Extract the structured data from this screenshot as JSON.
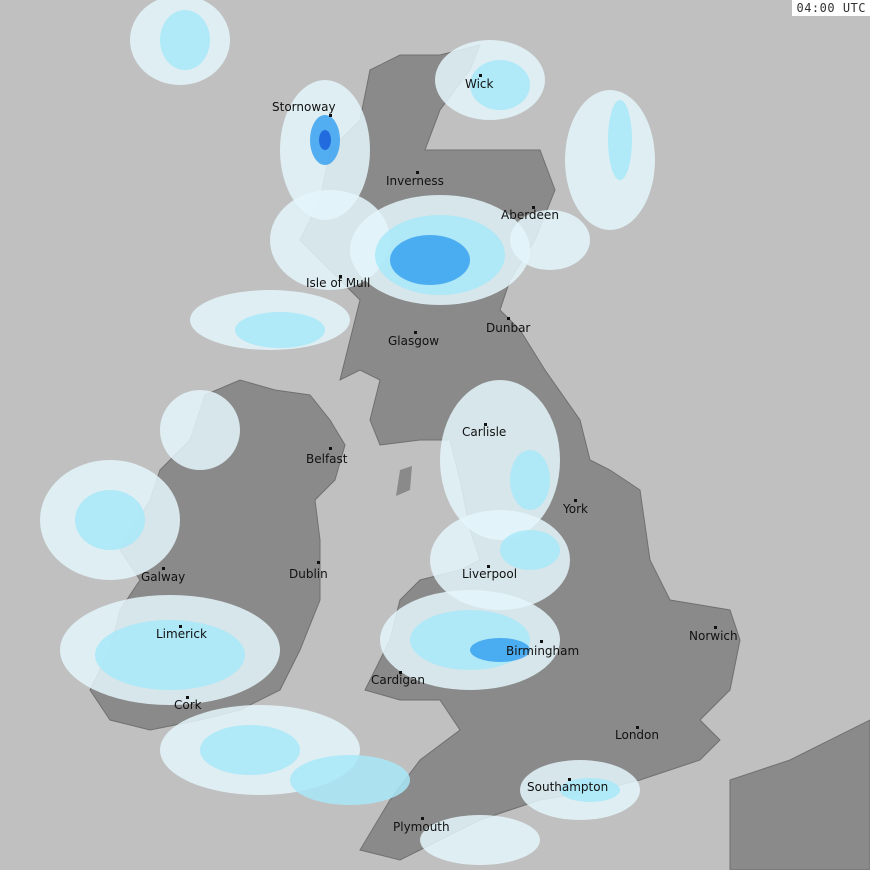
{
  "timestamp": "04:00 UTC",
  "colors": {
    "sea": "#c0c0c0",
    "land": "#8a8a8a",
    "land_border": "#6e6e6e",
    "precip_very_light": "#e4f6fb",
    "precip_light": "#a8e8f8",
    "precip_moderate": "#3aa2f0",
    "precip_heavy": "#1a5fdc"
  },
  "cities": [
    {
      "name": "Stornoway"
    },
    {
      "name": "Wick"
    },
    {
      "name": "Inverness"
    },
    {
      "name": "Aberdeen"
    },
    {
      "name": "Isle of Mull"
    },
    {
      "name": "Dunbar"
    },
    {
      "name": "Glasgow"
    },
    {
      "name": "Carlisle"
    },
    {
      "name": "Belfast"
    },
    {
      "name": "York"
    },
    {
      "name": "Galway"
    },
    {
      "name": "Dublin"
    },
    {
      "name": "Liverpool"
    },
    {
      "name": "Limerick"
    },
    {
      "name": "Norwich"
    },
    {
      "name": "Birmingham"
    },
    {
      "name": "Cardigan"
    },
    {
      "name": "Cork"
    },
    {
      "name": "London"
    },
    {
      "name": "Southampton"
    },
    {
      "name": "Plymouth"
    }
  ]
}
